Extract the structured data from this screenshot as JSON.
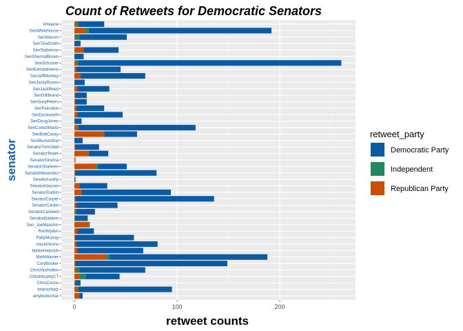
{
  "chart_data": {
    "type": "bar",
    "orientation": "horizontal",
    "stacked": true,
    "title": "Count of Retweets for Democratic Senators",
    "xlabel": "retweet counts",
    "ylabel": "senator",
    "xlim": [
      0,
      272
    ],
    "xticks": [
      0,
      100,
      200
    ],
    "grid": true,
    "legend": {
      "title": "retweet_party",
      "position": "right",
      "entries": [
        "Democratic Party",
        "Independent",
        "Republican Party"
      ]
    },
    "colors": {
      "Democratic Party": "#0a5ba3",
      "Independent": "#1f8a5f",
      "Republican Party": "#cc4e05"
    },
    "categories": [
      "timkaine",
      "SenWhitehouse",
      "SenWarren",
      "SenTinaSmith",
      "SenStabenow",
      "SenSherrodBrown",
      "SenSchumer",
      "SenKamalaHarris",
      "SenJeffMerkley",
      "SenJackyRosen",
      "SenJackReed",
      "SenGillibrand",
      "SenGaryPeters",
      "SenFeinstein",
      "SenDuckworth",
      "SenDougJones",
      "SenCortezMasto",
      "SenBobCasey",
      "SenBlumenthal",
      "SenatorTomUdall",
      "SenatorTester",
      "SenatorSinema",
      "SenatorShaheen",
      "SenatorMenendez",
      "SenatorLeahy",
      "SenatorHassan",
      "SenatorDurbin",
      "SenatorCarper",
      "SenatorCardin",
      "SenatorCantwell",
      "SenatorBaldwin",
      "Sen_JoeManchin",
      "RonWyden",
      "PattyMurray",
      "maziehirono",
      "MartinHeinrich",
      "MarkWarner",
      "CoryBooker",
      "ChrisVanHollen",
      "ChrisMurphyCT",
      "ChrisCoons",
      "brianschatz",
      "amyklobuchar"
    ],
    "series": [
      {
        "name": "Republican Party",
        "values": [
          2,
          11,
          1,
          0,
          9,
          0,
          2,
          2,
          6,
          0,
          3,
          1,
          1,
          2,
          3,
          0,
          3,
          29,
          0,
          1,
          14,
          1,
          21,
          1,
          0,
          5,
          7,
          1,
          2,
          1,
          0,
          14,
          3,
          1,
          2,
          3,
          31,
          1,
          2,
          5,
          1,
          3,
          5
        ]
      },
      {
        "name": "Independent",
        "values": [
          2,
          3,
          4,
          0,
          0,
          0,
          2,
          0,
          0,
          0,
          0,
          0,
          0,
          0,
          0,
          0,
          1,
          0,
          0,
          0,
          0,
          0,
          2,
          0,
          0,
          0,
          0,
          0,
          0,
          1,
          1,
          1,
          0,
          0,
          0,
          0,
          3,
          0,
          3,
          6,
          0,
          1,
          0
        ]
      },
      {
        "name": "Democratic Party",
        "values": [
          25,
          178,
          46,
          6,
          34,
          9,
          256,
          43,
          63,
          10,
          31,
          11,
          11,
          27,
          44,
          7,
          114,
          32,
          8,
          23,
          19,
          0,
          28,
          79,
          1,
          27,
          87,
          135,
          40,
          18,
          12,
          0,
          16,
          57,
          79,
          64,
          154,
          148,
          64,
          33,
          5,
          91,
          3
        ]
      }
    ]
  }
}
